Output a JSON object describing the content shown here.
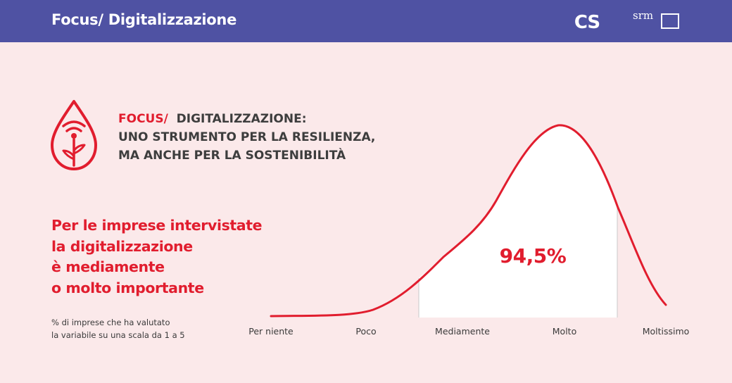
{
  "header": {
    "title": "Focus/ Digitalizzazione",
    "logo_cs_text": "CS",
    "logo_srm_text": "srm"
  },
  "heading": {
    "focus": "FOCUS/",
    "line1": "DIGITALIZZAZIONE:",
    "line2": "UNO STRUMENTO PER LA RESILIENZA,",
    "line3": "MA ANCHE PER LA SOSTENIBILITÀ"
  },
  "lead": {
    "line1": "Per le imprese intervistate",
    "line2": "la digitalizzazione",
    "line3": "è mediamente",
    "line4": "o molto importante"
  },
  "note": {
    "line1": "% di imprese che ha valutato",
    "line2": "la variabile su una scala da 1 a 5"
  },
  "colors": {
    "brand_bar": "#4f52a3",
    "accent": "#e11d2e",
    "background": "#fbe9ea"
  },
  "icons": [
    "digital-leaf-drop-icon"
  ],
  "chart_data": {
    "type": "area",
    "categories": [
      "Per niente",
      "Poco",
      "Mediamente",
      "Molto",
      "Moltissimo"
    ],
    "highlight": {
      "from": "Mediamente",
      "to": "Moltissimo",
      "label": "94,5%",
      "value": 94.5
    }
  }
}
